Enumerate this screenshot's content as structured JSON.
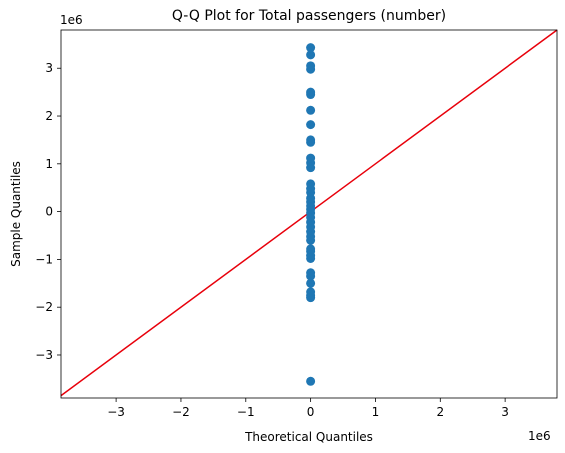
{
  "chart_data": {
    "type": "scatter",
    "title": "Q-Q Plot for Total passengers (number)",
    "xlabel": "Theoretical Quantiles",
    "ylabel": "Sample Quantiles",
    "x_offset_label": "1e6",
    "y_offset_label": "1e6",
    "xlim": [
      -3.85,
      3.8
    ],
    "ylim": [
      -3.9,
      3.8
    ],
    "xticks": [
      -3,
      -2,
      -1,
      0,
      1,
      2,
      3
    ],
    "yticks": [
      -3,
      -2,
      -1,
      0,
      1,
      2,
      3
    ],
    "xtick_labels": [
      "−3",
      "−2",
      "−1",
      "0",
      "1",
      "2",
      "3"
    ],
    "ytick_labels": [
      "−3",
      "−2",
      "−1",
      "0",
      "1",
      "2",
      "3"
    ],
    "grid": false,
    "reference_line": {
      "slope": 1,
      "intercept": 0,
      "color": "#e8000b"
    },
    "marker_color": "#1f77b4",
    "points": [
      {
        "x": 0,
        "y": -3.55
      },
      {
        "x": 0,
        "y": -1.8
      },
      {
        "x": 0,
        "y": -1.75
      },
      {
        "x": 0,
        "y": -1.68
      },
      {
        "x": 0,
        "y": -1.5
      },
      {
        "x": 0,
        "y": -1.35
      },
      {
        "x": 0,
        "y": -1.28
      },
      {
        "x": 0,
        "y": -0.98
      },
      {
        "x": 0,
        "y": -0.92
      },
      {
        "x": 0,
        "y": -0.83
      },
      {
        "x": 0,
        "y": -0.78
      },
      {
        "x": 0,
        "y": -0.6
      },
      {
        "x": 0,
        "y": -0.52
      },
      {
        "x": 0,
        "y": -0.42
      },
      {
        "x": 0,
        "y": -0.32
      },
      {
        "x": 0,
        "y": -0.22
      },
      {
        "x": 0,
        "y": -0.12
      },
      {
        "x": 0,
        "y": -0.03
      },
      {
        "x": 0,
        "y": 0.05
      },
      {
        "x": 0,
        "y": 0.12
      },
      {
        "x": 0,
        "y": 0.2
      },
      {
        "x": 0,
        "y": 0.28
      },
      {
        "x": 0,
        "y": 0.4
      },
      {
        "x": 0,
        "y": 0.48
      },
      {
        "x": 0,
        "y": 0.58
      },
      {
        "x": 0,
        "y": 0.92
      },
      {
        "x": 0,
        "y": 1.02
      },
      {
        "x": 0,
        "y": 1.12
      },
      {
        "x": 0,
        "y": 1.45
      },
      {
        "x": 0,
        "y": 1.5
      },
      {
        "x": 0,
        "y": 1.82
      },
      {
        "x": 0,
        "y": 2.12
      },
      {
        "x": 0,
        "y": 2.45
      },
      {
        "x": 0,
        "y": 2.5
      },
      {
        "x": 0,
        "y": 2.98
      },
      {
        "x": 0,
        "y": 3.05
      },
      {
        "x": 0,
        "y": 3.28
      },
      {
        "x": 0,
        "y": 3.43
      }
    ]
  }
}
